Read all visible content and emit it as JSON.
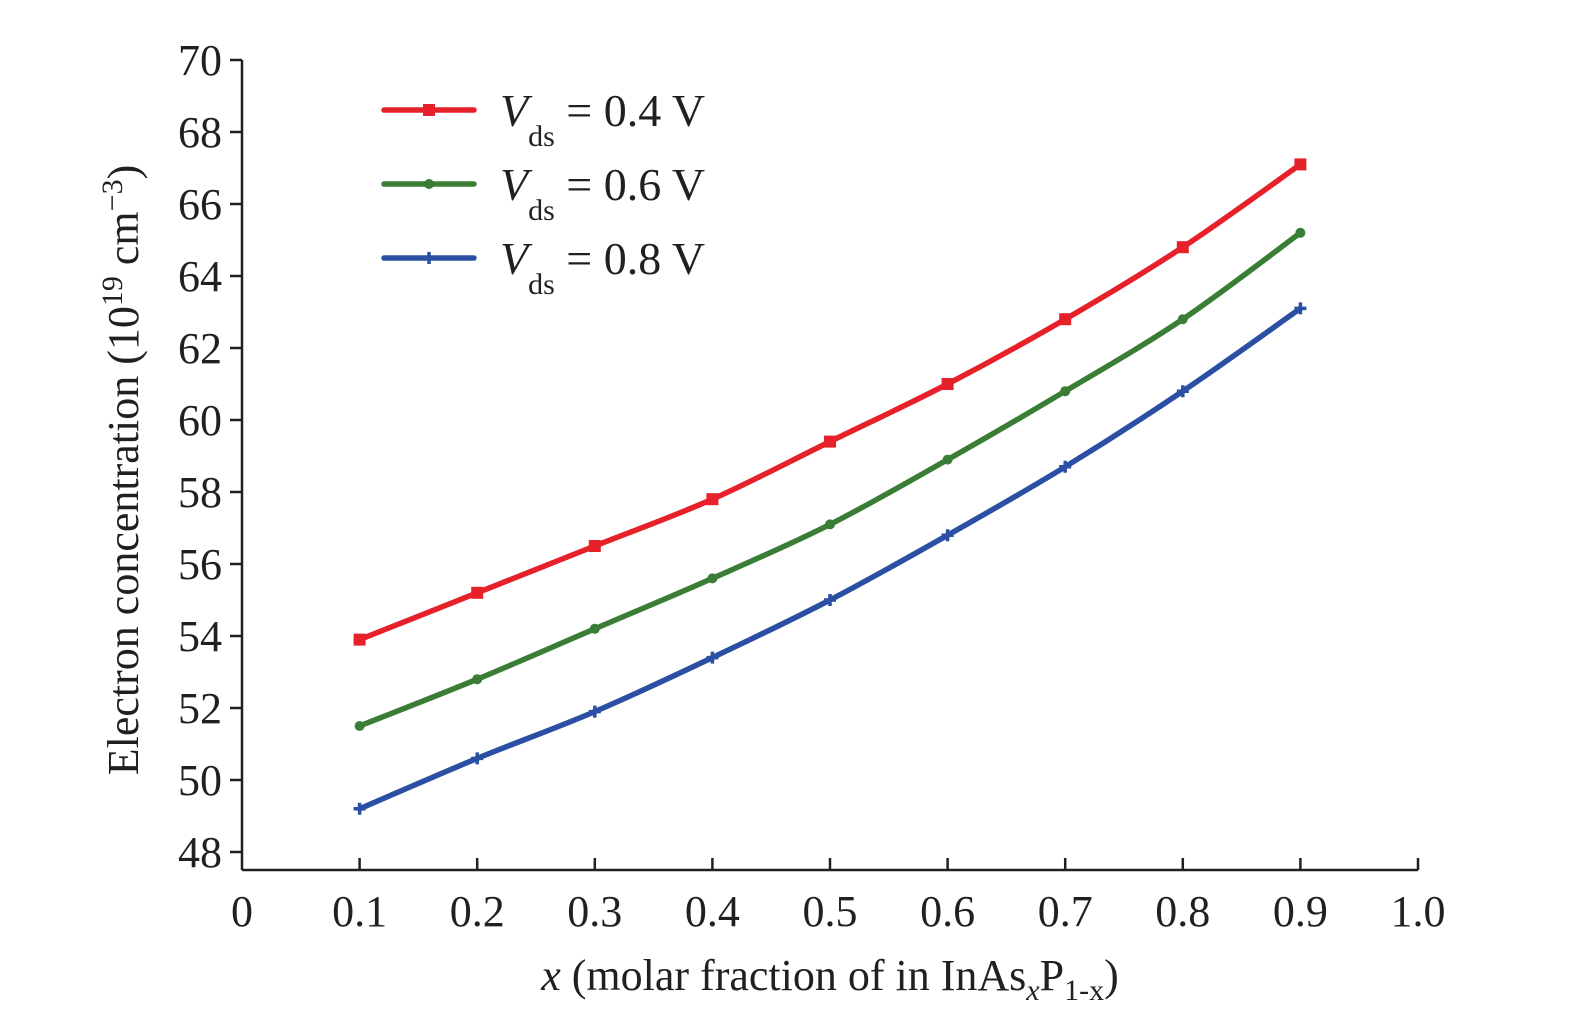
{
  "chart_data": {
    "type": "line",
    "title": "",
    "x": [
      0.1,
      0.2,
      0.3,
      0.4,
      0.5,
      0.6,
      0.7,
      0.8,
      0.9
    ],
    "series": [
      {
        "name": "V_ds = 0.4 V",
        "legend": {
          "var": "V",
          "sub": "ds",
          "rest": " = 0.4 V"
        },
        "color": "#e62129",
        "marker": "square",
        "values": [
          53.9,
          55.2,
          56.5,
          57.8,
          59.4,
          61.0,
          62.8,
          64.8,
          67.1
        ]
      },
      {
        "name": "V_ds = 0.6 V",
        "legend": {
          "var": "V",
          "sub": "ds",
          "rest": " = 0.6 V"
        },
        "color": "#3a7d34",
        "marker": "dot",
        "values": [
          51.5,
          52.8,
          54.2,
          55.6,
          57.1,
          58.9,
          60.8,
          62.8,
          65.2
        ]
      },
      {
        "name": "V_ds = 0.8 V",
        "legend": {
          "var": "V",
          "sub": "ds",
          "rest": " = 0.8 V"
        },
        "color": "#2b4fa3",
        "marker": "plus",
        "values": [
          49.2,
          50.6,
          51.9,
          53.4,
          55.0,
          56.8,
          58.7,
          60.8,
          63.1
        ]
      }
    ],
    "xlim": [
      0,
      1.0
    ],
    "ylim": [
      47.5,
      70
    ],
    "xticks": [
      "0",
      "0.1",
      "0.2",
      "0.3",
      "0.4",
      "0.5",
      "0.6",
      "0.7",
      "0.8",
      "0.9",
      "1.0"
    ],
    "yticks": [
      "48",
      "50",
      "52",
      "54",
      "56",
      "58",
      "60",
      "62",
      "64",
      "66",
      "68",
      "70"
    ],
    "xlabel": {
      "var": "x",
      "text1": " (molar fraction of in InAs",
      "sub1": "x",
      "text2": "P",
      "sub2": "1-x",
      "text3": ")"
    },
    "ylabel": {
      "text": "Electron concentration (10",
      "sup1": "19",
      "unit": " cm",
      "sup2": "−3",
      "close": ")"
    },
    "legend_position": "top-left",
    "grid": false
  }
}
